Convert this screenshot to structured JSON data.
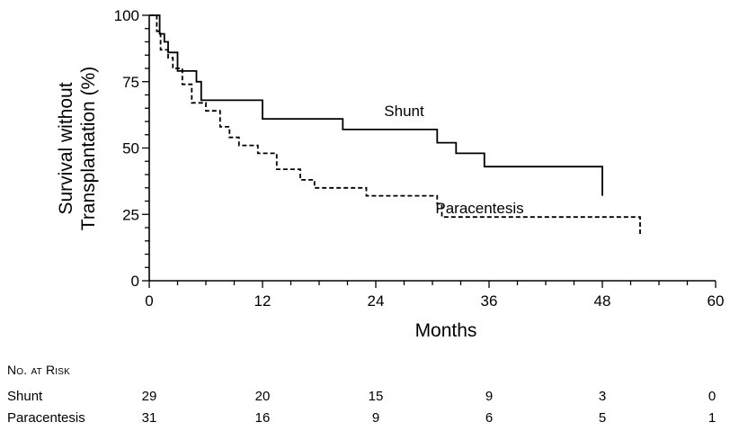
{
  "chart_data": {
    "type": "line",
    "xlabel": "Months",
    "ylabel_line1": "Survival without",
    "ylabel_line2": "Transplantation (%)",
    "xlim": [
      0,
      60
    ],
    "ylim": [
      0,
      100
    ],
    "x_ticks": [
      "0",
      "12",
      "24",
      "36",
      "48",
      "60"
    ],
    "y_ticks": [
      "0",
      "25",
      "50",
      "75",
      "100"
    ],
    "grid": false,
    "series": [
      {
        "name": "Shunt",
        "style": "solid",
        "steps": [
          [
            0,
            100
          ],
          [
            1.1,
            100
          ],
          [
            1.1,
            93
          ],
          [
            1.6,
            93
          ],
          [
            1.6,
            90
          ],
          [
            2,
            90
          ],
          [
            2,
            86
          ],
          [
            3,
            86
          ],
          [
            3,
            79
          ],
          [
            5,
            79
          ],
          [
            5,
            75
          ],
          [
            5.5,
            75
          ],
          [
            5.5,
            68
          ],
          [
            12,
            68
          ],
          [
            12,
            61
          ],
          [
            20.5,
            61
          ],
          [
            20.5,
            57
          ],
          [
            30.5,
            57
          ],
          [
            30.5,
            52
          ],
          [
            32.5,
            52
          ],
          [
            32.5,
            48
          ],
          [
            35.5,
            48
          ],
          [
            35.5,
            43
          ],
          [
            48,
            43
          ],
          [
            48,
            32
          ]
        ]
      },
      {
        "name": "Paracentesis",
        "style": "dashed",
        "steps": [
          [
            0,
            100
          ],
          [
            0.8,
            100
          ],
          [
            0.8,
            94
          ],
          [
            1.2,
            94
          ],
          [
            1.2,
            87
          ],
          [
            2,
            87
          ],
          [
            2,
            84
          ],
          [
            2.5,
            84
          ],
          [
            2.5,
            80
          ],
          [
            3.5,
            80
          ],
          [
            3.5,
            74
          ],
          [
            4.5,
            74
          ],
          [
            4.5,
            67
          ],
          [
            6,
            67
          ],
          [
            6,
            64
          ],
          [
            7.5,
            64
          ],
          [
            7.5,
            58
          ],
          [
            8.5,
            58
          ],
          [
            8.5,
            54
          ],
          [
            9.5,
            54
          ],
          [
            9.5,
            51
          ],
          [
            11.5,
            51
          ],
          [
            11.5,
            48
          ],
          [
            13.5,
            48
          ],
          [
            13.5,
            42
          ],
          [
            16,
            42
          ],
          [
            16,
            38
          ],
          [
            17.5,
            38
          ],
          [
            17.5,
            35
          ],
          [
            23,
            35
          ],
          [
            23,
            32
          ],
          [
            30.5,
            32
          ],
          [
            30.5,
            29
          ],
          [
            31,
            29
          ],
          [
            31,
            24
          ],
          [
            52,
            24
          ],
          [
            52,
            17
          ]
        ]
      }
    ],
    "annotations": [
      {
        "text": "Shunt",
        "x": 27,
        "y": 62
      },
      {
        "text": "Paracentesis",
        "x": 35,
        "y": 25.5
      }
    ]
  },
  "risk_table": {
    "heading": "No. at Risk",
    "times": [
      0,
      12,
      24,
      36,
      48,
      60
    ],
    "rows": [
      {
        "label": "Shunt",
        "values": [
          "29",
          "20",
          "15",
          "9",
          "3",
          "0"
        ]
      },
      {
        "label": "Paracentesis",
        "values": [
          "31",
          "16",
          "9",
          "6",
          "5",
          "1"
        ]
      }
    ]
  }
}
